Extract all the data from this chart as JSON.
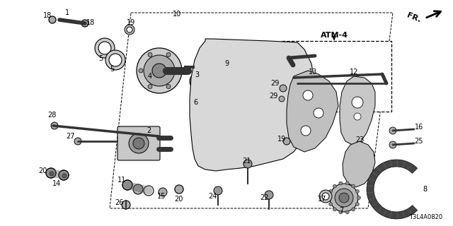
{
  "bg_color": "#ffffff",
  "diagram_code": "T3L4A0820",
  "atm_label": "ATM-4",
  "fr_label": "FR.",
  "figsize": [
    6.4,
    3.2
  ],
  "dpi": 100
}
